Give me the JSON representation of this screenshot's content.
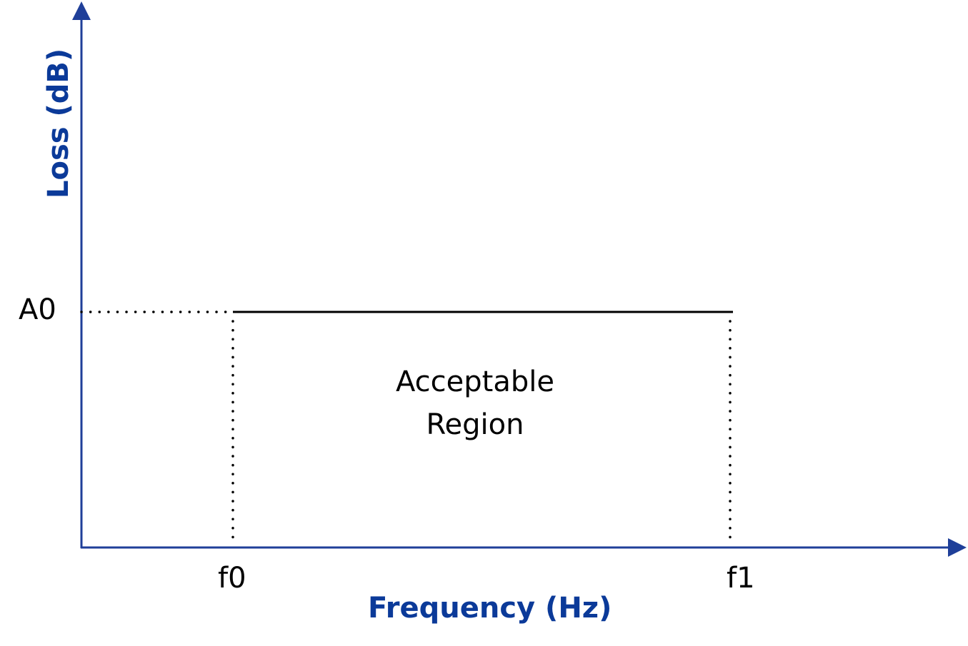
{
  "diagram": {
    "x_axis_title": "Frequency (Hz)",
    "y_axis_title": "Loss (dB)",
    "x_ticks": [
      "f0",
      "f1"
    ],
    "y_ticks": [
      "A0"
    ],
    "region_label_line1": "Acceptable",
    "region_label_line2": "Region",
    "colors": {
      "axis": "#0b3a99",
      "limit_line": "#000000"
    }
  }
}
